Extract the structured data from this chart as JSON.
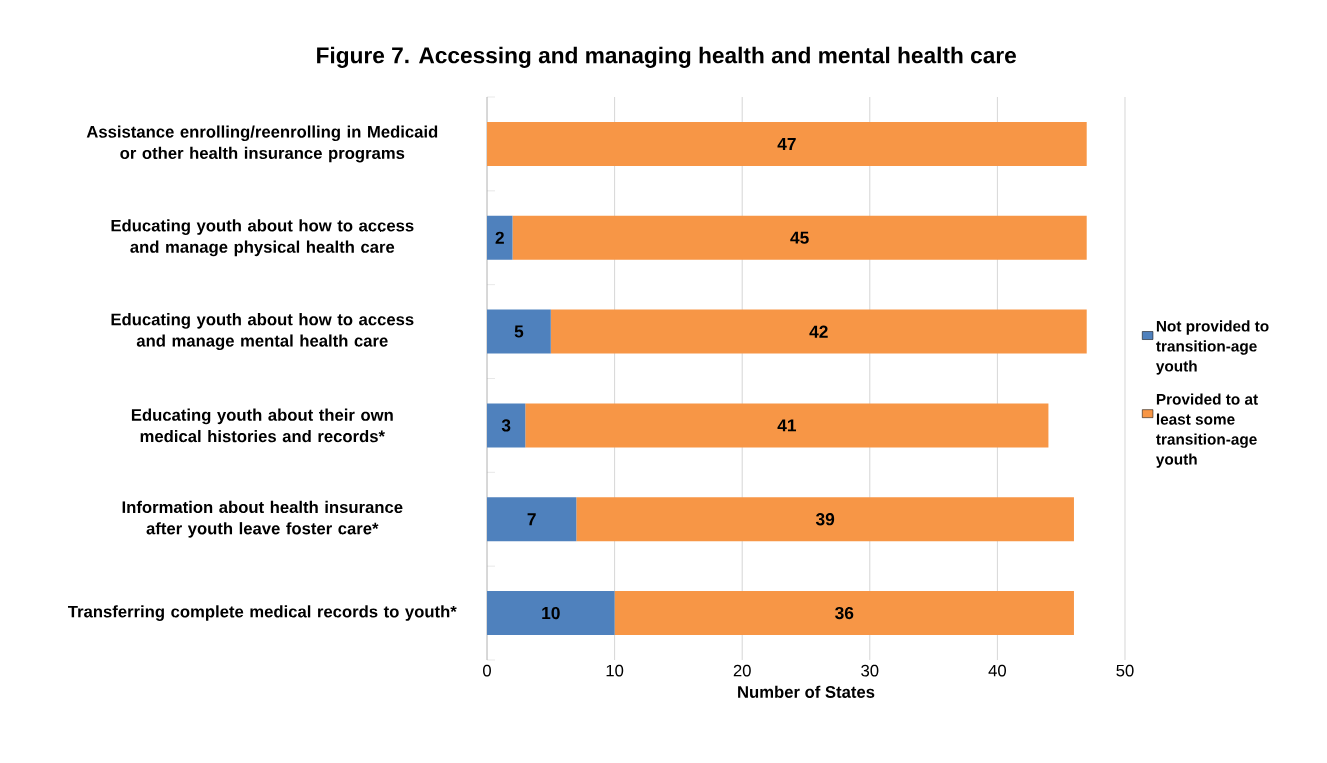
{
  "chart_data": {
    "type": "bar",
    "orientation": "horizontal",
    "stacked": true,
    "title": "Figure 7. Accessing and managing health and mental health care",
    "xlabel": "Number of States",
    "categories": [
      "Assistance enrolling/reenrolling in Medicaid or other health insurance programs",
      "Educating youth about how to access and manage physical health care",
      "Educating youth about how to access and manage mental health care",
      "Educating youth about their own medical histories and records*",
      "Information about health insurance after youth leave foster care*",
      "Transferring complete medical records to youth*"
    ],
    "series": [
      {
        "name": "Not provided to transition-age youth",
        "color": "#4f81bd",
        "values": [
          0,
          2,
          5,
          3,
          7,
          10
        ],
        "value_labels": [
          null,
          "2",
          "5",
          "3",
          "7",
          "10"
        ]
      },
      {
        "name": "Provided to at least some transition-age youth",
        "color": "#f79646",
        "values": [
          47,
          45,
          42,
          41,
          39,
          36
        ],
        "value_labels": [
          "47",
          "45",
          "42",
          "41",
          "39",
          "36"
        ]
      }
    ],
    "xlim": [
      0,
      50
    ],
    "xticks": [
      0,
      10,
      20,
      30,
      40,
      50
    ],
    "grid": "x",
    "legend": "right"
  }
}
